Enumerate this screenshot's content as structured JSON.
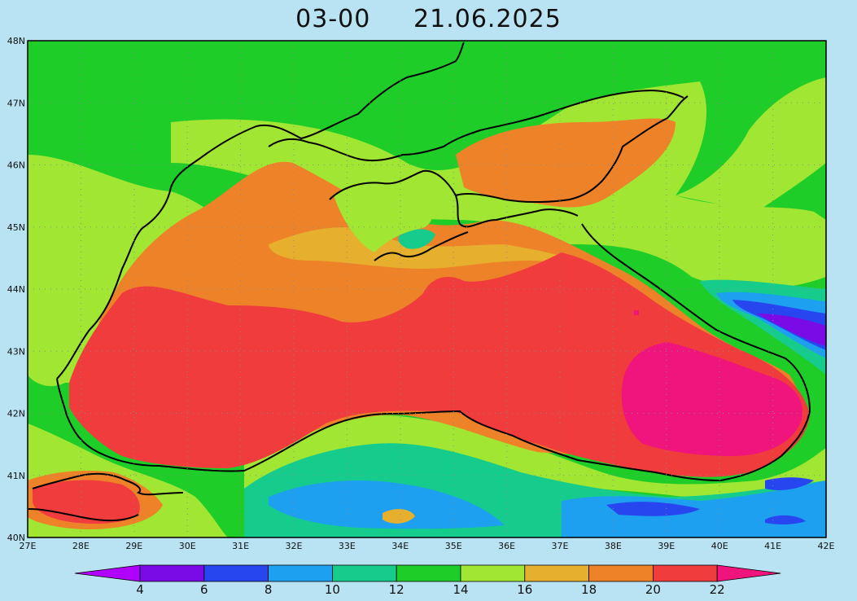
{
  "title": {
    "time": "03-00",
    "date": "21.06.2025"
  },
  "map": {
    "lat_labels": [
      "48N",
      "47N",
      "46N",
      "45N",
      "44N",
      "43N",
      "42N",
      "41N",
      "40N"
    ],
    "lon_labels": [
      "27E",
      "28E",
      "29E",
      "30E",
      "31E",
      "32E",
      "33E",
      "34E",
      "35E",
      "36E",
      "37E",
      "38E",
      "39E",
      "40E",
      "41E",
      "42E"
    ],
    "extent": {
      "lon": [
        27,
        42
      ],
      "lat": [
        40,
        48
      ]
    },
    "grid": "dotted"
  },
  "colorbar": {
    "labels": [
      "4",
      "6",
      "8",
      "10",
      "12",
      "14",
      "16",
      "18",
      "20",
      "22"
    ],
    "colors": [
      "#b000ff",
      "#7a0ae6",
      "#2846f0",
      "#1ea0f0",
      "#16cc8c",
      "#1ecd28",
      "#a0e632",
      "#e6af2d",
      "#ee8228",
      "#f03c3c",
      "#f0147d"
    ]
  },
  "fields": {
    "background": "#1ecd28",
    "sea_base": "#ee8228",
    "coast_color": "#000000"
  }
}
